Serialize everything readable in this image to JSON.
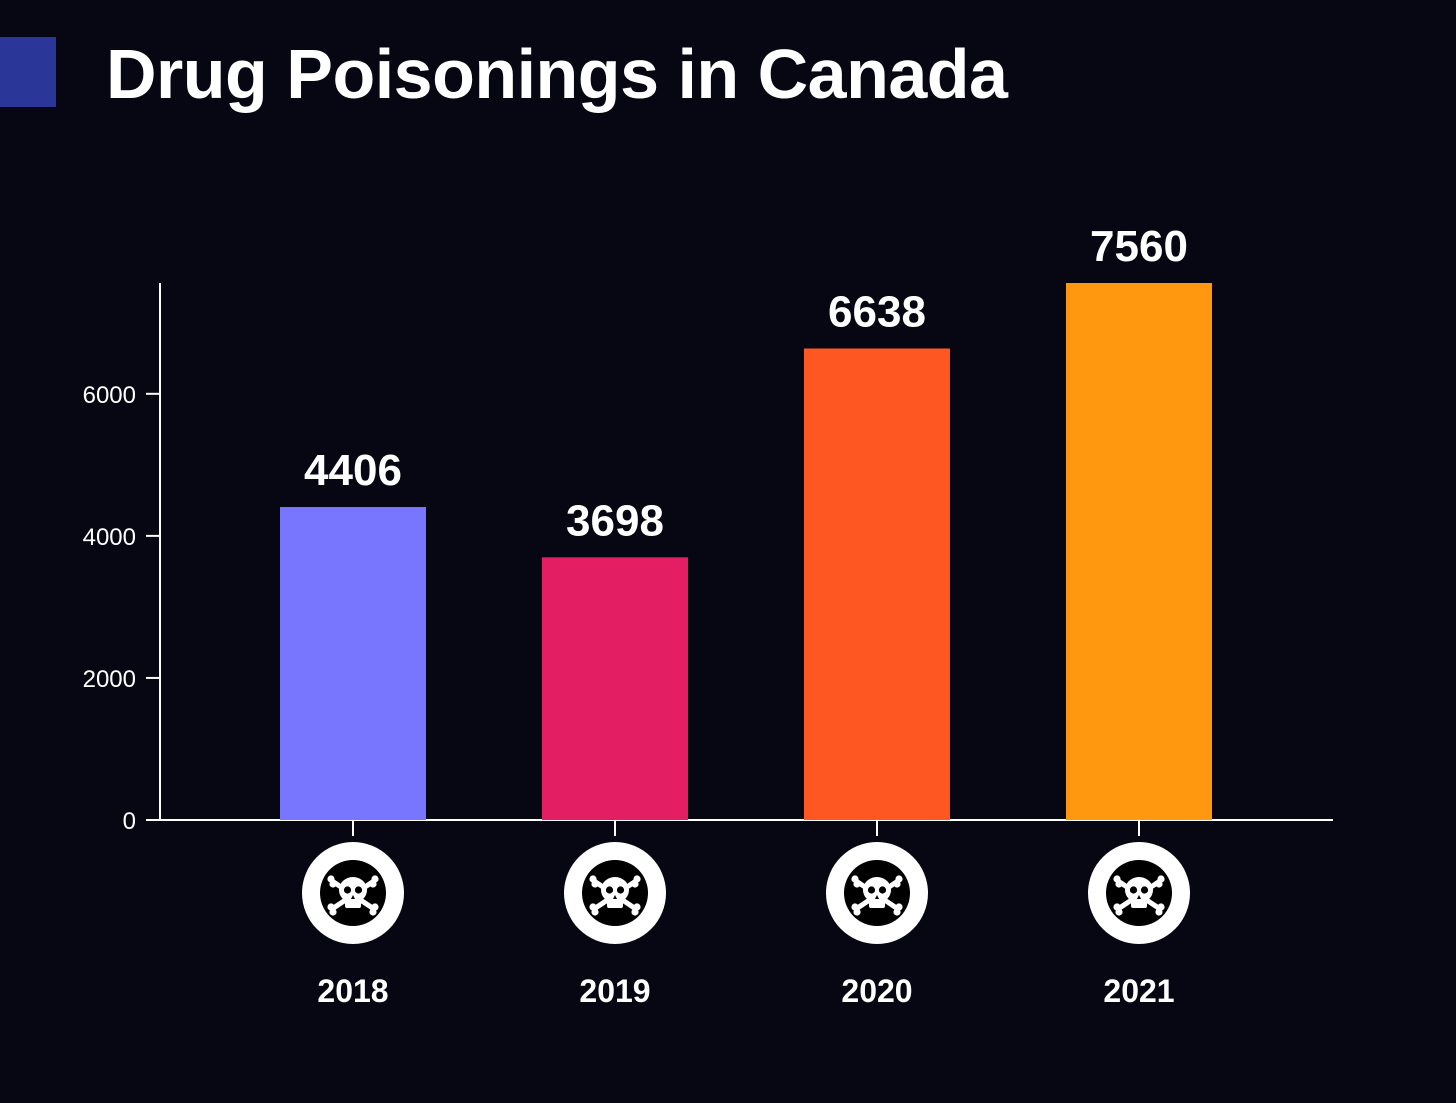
{
  "header": {
    "title": "Drug Poisonings in Canada",
    "accent_color": "#2B3699"
  },
  "chart_data": {
    "type": "bar",
    "title": "Drug Poisonings in Canada",
    "xlabel": "",
    "ylabel": "",
    "categories": [
      "2018",
      "2019",
      "2020",
      "2021"
    ],
    "values": [
      4406,
      3698,
      6638,
      7560
    ],
    "bar_colors": [
      "#7876FF",
      "#E31E63",
      "#FF5722",
      "#FF980F"
    ],
    "ylim": [
      0,
      7560
    ],
    "yticks": [
      0,
      2000,
      4000,
      6000
    ],
    "ytick_labels": [
      "0",
      "2000",
      "4000",
      "6000"
    ],
    "data_labels": [
      "4406",
      "3698",
      "6638",
      "7560"
    ],
    "category_icon": "skull-crossbones-icon",
    "grid": false,
    "legend": "none"
  },
  "colors": {
    "background": "#070714",
    "axis": "#FFFFFF",
    "text": "#FFFFFF"
  }
}
